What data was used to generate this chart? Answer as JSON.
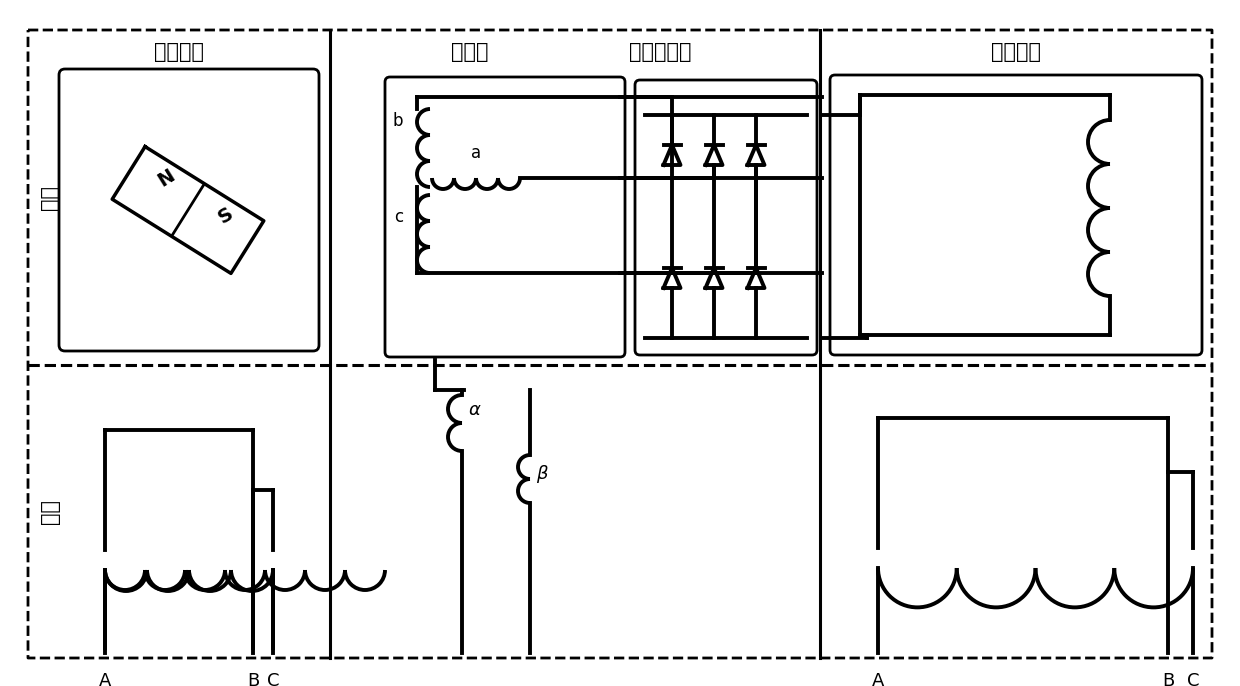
{
  "bg_color": "#ffffff",
  "lw": 2.2,
  "lw_thick": 2.8,
  "fig_width": 12.4,
  "fig_height": 6.86,
  "labels": {
    "fuzici": "副励磁机",
    "lici": "励磁机",
    "xuanzhuan": "旋转整流器",
    "zhufadian": "主发电机",
    "zhuanzi": "转子",
    "dingzi": "定子"
  }
}
